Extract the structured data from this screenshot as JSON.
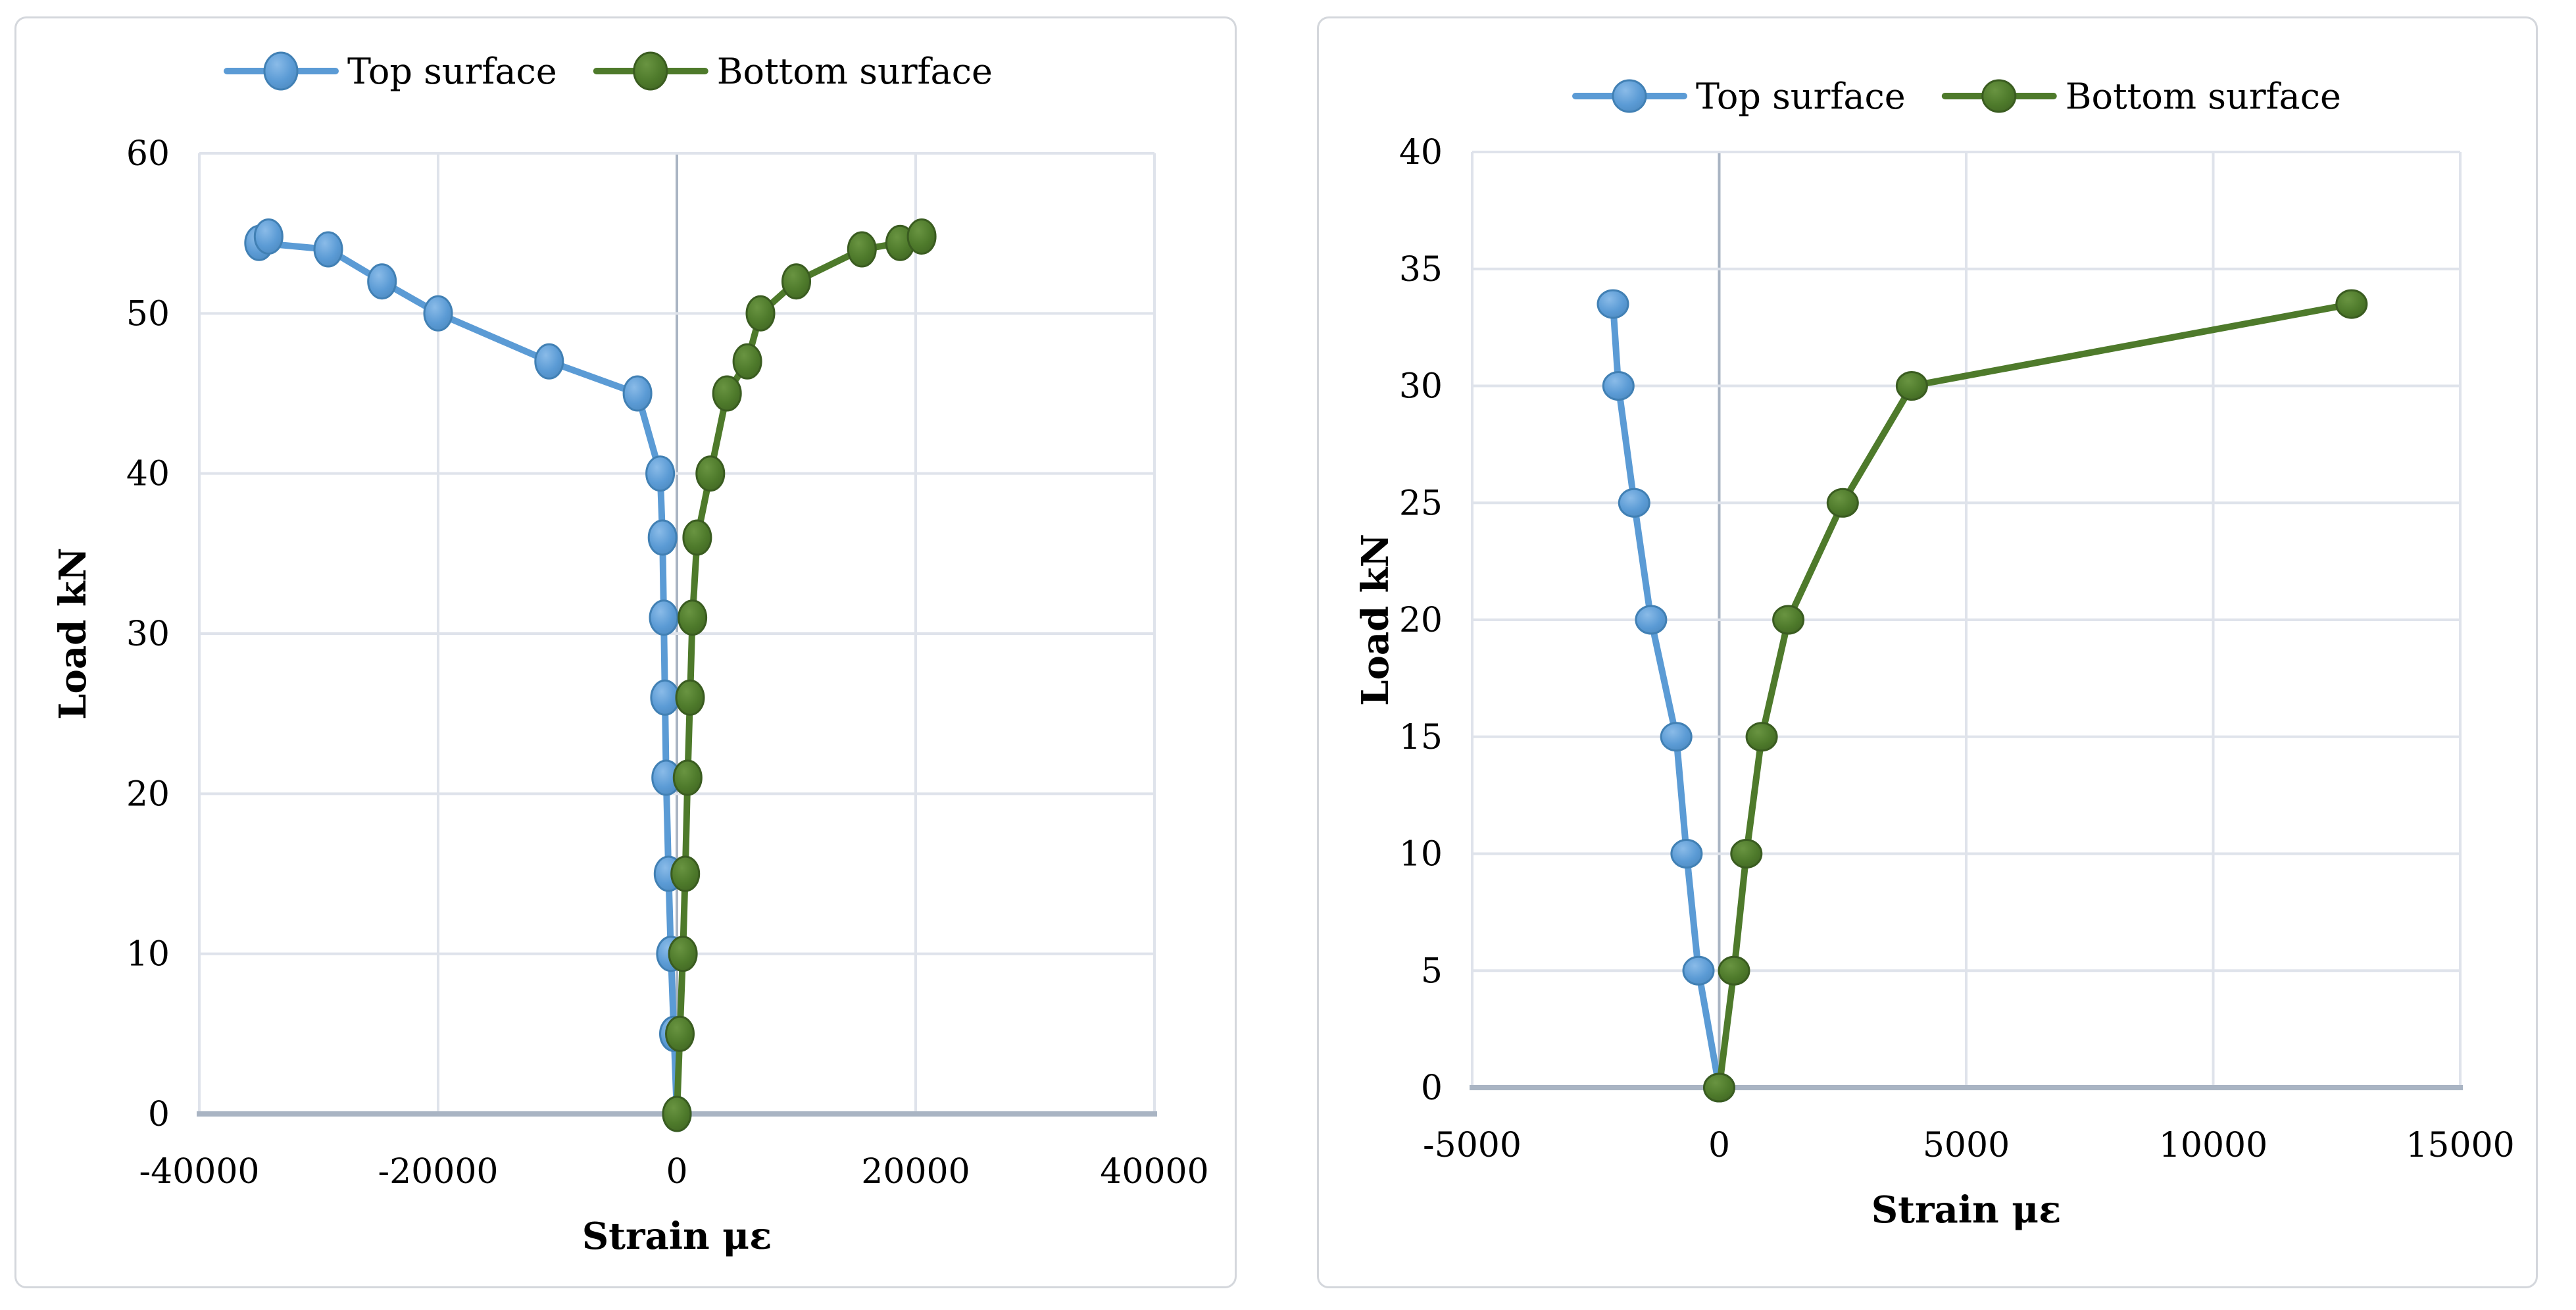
{
  "page": {
    "background": "#ffffff"
  },
  "colors": {
    "top_surface": "#5b9bd5",
    "top_surface_light": "#8abbe8",
    "top_surface_dark": "#4a86bc",
    "top_surface_stroke": "#4180b4",
    "bottom_surface": "#4e7a2b",
    "bottom_surface_light": "#699441",
    "bottom_surface_dark": "#3f6322",
    "bottom_surface_stroke": "#3a5c20",
    "gridline": "#dfe3eb",
    "axis_line": "#a9b4c3",
    "tick_text": "#000000",
    "panel_border": "#d4d7dc"
  },
  "chart_data": [
    {
      "id": "left-chart",
      "type": "line",
      "title": "",
      "xlabel": "Strain με",
      "ylabel": "Load kN",
      "xlim": [
        -40000,
        40000
      ],
      "ylim": [
        0,
        60
      ],
      "xticks": [
        -40000,
        -20000,
        0,
        20000,
        40000
      ],
      "yticks": [
        0,
        10,
        20,
        30,
        40,
        50,
        60
      ],
      "grid": true,
      "legend_position": "top",
      "legend": [
        "Top surface",
        "Bottom surface"
      ],
      "series": [
        {
          "name": "Top surface",
          "color_key": "top_surface",
          "points": [
            [
              0,
              0
            ],
            [
              -250,
              5
            ],
            [
              -500,
              10
            ],
            [
              -700,
              15
            ],
            [
              -900,
              21
            ],
            [
              -1000,
              26
            ],
            [
              -1100,
              31
            ],
            [
              -1200,
              36
            ],
            [
              -1400,
              40
            ],
            [
              -3300,
              45
            ],
            [
              -10700,
              47
            ],
            [
              -20000,
              50
            ],
            [
              -24700,
              52
            ],
            [
              -29200,
              54
            ],
            [
              -35000,
              54.4
            ],
            [
              -34200,
              54.8
            ]
          ]
        },
        {
          "name": "Bottom surface",
          "color_key": "bottom_surface",
          "points": [
            [
              0,
              0
            ],
            [
              250,
              5
            ],
            [
              500,
              10
            ],
            [
              700,
              15
            ],
            [
              900,
              21
            ],
            [
              1100,
              26
            ],
            [
              1300,
              31
            ],
            [
              1700,
              36
            ],
            [
              2800,
              40
            ],
            [
              4200,
              45
            ],
            [
              5900,
              47
            ],
            [
              7000,
              50
            ],
            [
              10000,
              52
            ],
            [
              15500,
              54
            ],
            [
              18700,
              54.4
            ],
            [
              20500,
              54.8
            ]
          ]
        }
      ]
    },
    {
      "id": "right-chart",
      "type": "line",
      "title": "",
      "xlabel": "Strain με",
      "ylabel": "Load kN",
      "xlim": [
        -5000,
        15000
      ],
      "ylim": [
        0,
        40
      ],
      "xticks": [
        -5000,
        0,
        5000,
        10000,
        15000
      ],
      "yticks": [
        0,
        5,
        10,
        15,
        20,
        25,
        30,
        35,
        40
      ],
      "grid": true,
      "legend_position": "top",
      "legend": [
        "Top surface",
        "Bottom surface"
      ],
      "series": [
        {
          "name": "Top surface",
          "color_key": "top_surface",
          "points": [
            [
              0,
              0
            ],
            [
              -420,
              5
            ],
            [
              -660,
              10
            ],
            [
              -870,
              15
            ],
            [
              -1380,
              20
            ],
            [
              -1720,
              25
            ],
            [
              -2040,
              30
            ],
            [
              -2150,
              33.5
            ]
          ]
        },
        {
          "name": "Bottom surface",
          "color_key": "bottom_surface",
          "points": [
            [
              0,
              0
            ],
            [
              300,
              5
            ],
            [
              550,
              10
            ],
            [
              860,
              15
            ],
            [
              1400,
              20
            ],
            [
              2500,
              25
            ],
            [
              3900,
              30
            ],
            [
              12800,
              33.5
            ]
          ]
        }
      ]
    }
  ]
}
